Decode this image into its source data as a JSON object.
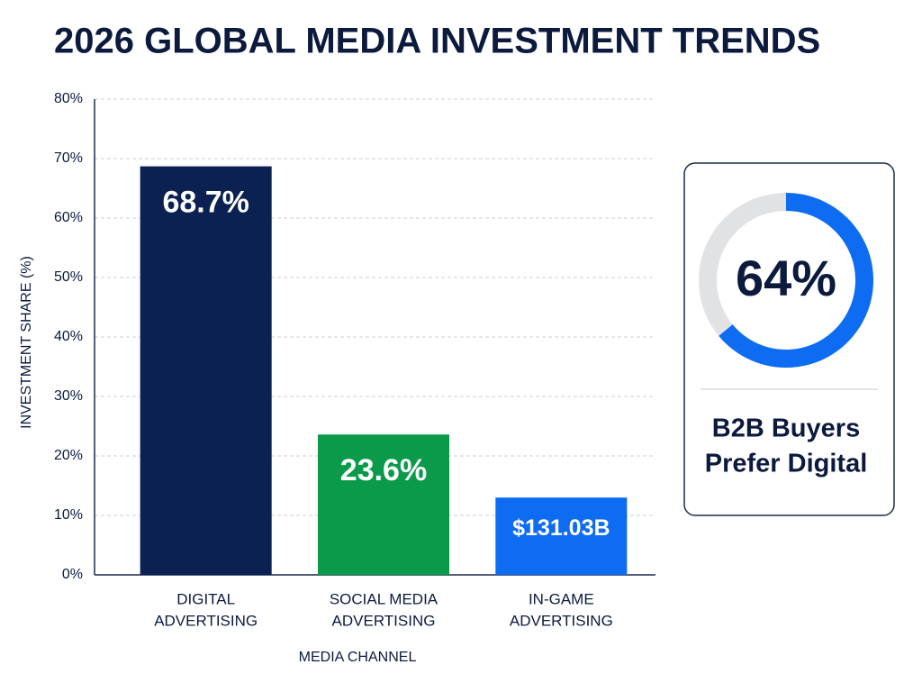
{
  "chart_data": [
    {
      "type": "bar",
      "title": "2026 GLOBAL MEDIA INVESTMENT TRENDS",
      "ylabel": "INVESTMENT SHARE (%)",
      "xlabel": "MEDIA CHANNEL",
      "categories": [
        [
          "DIGITAL",
          "ADVERTISING"
        ],
        [
          "SOCIAL MEDIA",
          "ADVERTISING"
        ],
        [
          "IN-GAME",
          "ADVERTISING"
        ]
      ],
      "values": [
        68.7,
        23.6,
        13
      ],
      "value_labels": [
        "68.7%",
        "23.6%",
        null
      ],
      "annotations": [
        "$131.03B"
      ],
      "colors": [
        "#0b2151",
        "#0a9a4a",
        "#0d6cf2"
      ],
      "ylim": [
        0,
        80
      ],
      "yticks": [
        {
          "value": 0,
          "label": "0%"
        },
        {
          "value": 10,
          "label": "10%"
        },
        {
          "value": 20,
          "label": "20%"
        },
        {
          "value": 30,
          "label": "30%"
        },
        {
          "value": 40,
          "label": "40%"
        },
        {
          "value": 50,
          "label": "50%"
        },
        {
          "value": 60,
          "label": "60%"
        },
        {
          "value": 70,
          "label": "70%"
        },
        {
          "value": 80,
          "label": "80%"
        }
      ],
      "grid": true
    },
    {
      "type": "donut",
      "values": [
        64
      ],
      "value_labels": [
        "64%"
      ],
      "color": "#0d6cf2",
      "caption": [
        "B2B Buyers",
        "Prefer Digital"
      ]
    }
  ]
}
